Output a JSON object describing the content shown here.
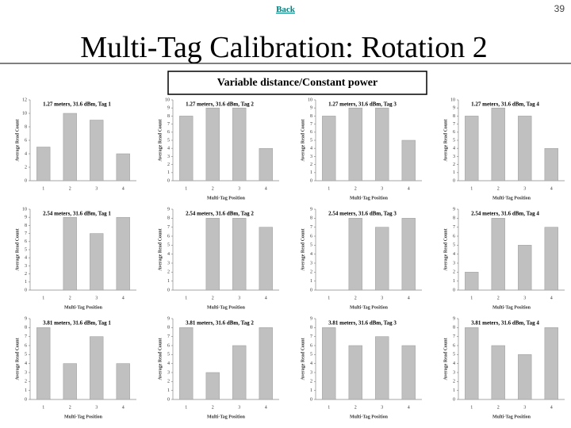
{
  "page": {
    "back": "Back",
    "number": "39",
    "title": "Multi-Tag Calibration: Rotation 2",
    "subtitle": "Variable distance/Constant power"
  },
  "chart_data": [
    {
      "type": "bar",
      "title": "1.27 meters, 31.6 dBm, Tag 1",
      "y_label": "Average Read Count",
      "categories": [
        "1",
        "2",
        "3",
        "4"
      ],
      "values": [
        5,
        10,
        9,
        4
      ],
      "color": "#c0c0c0",
      "ylim": [
        0,
        12
      ],
      "yticks": [
        0,
        2,
        4,
        6,
        8,
        10,
        12
      ]
    },
    {
      "type": "bar",
      "title": "1.27 meters, 31.6 dBm, Tag 2",
      "x_label": "Multi-Tag Position",
      "y_label": "Average Read Count",
      "categories": [
        "1",
        "2",
        "3",
        "4"
      ],
      "values": [
        8,
        9,
        9,
        4
      ],
      "color": "#c0c0c0",
      "ylim": [
        0,
        10
      ],
      "yticks": [
        0,
        1,
        2,
        3,
        4,
        5,
        6,
        7,
        8,
        9,
        10
      ]
    },
    {
      "type": "bar",
      "title": "1.27 meters, 31.6 dBm, Tag 3",
      "x_label": "Multi-Tag Position",
      "y_label": "Average Read Count",
      "categories": [
        "1",
        "2",
        "3",
        "4"
      ],
      "values": [
        8,
        9,
        9,
        5
      ],
      "color": "#c0c0c0",
      "ylim": [
        0,
        10
      ],
      "yticks": [
        0,
        1,
        2,
        3,
        4,
        5,
        6,
        7,
        8,
        9,
        10
      ]
    },
    {
      "type": "bar",
      "title": "1.27 meters, 31.6 dBm, Tag 4",
      "x_label": "Multi-Tag Position",
      "y_label": "Average Read Count",
      "categories": [
        "1",
        "2",
        "3",
        "4"
      ],
      "values": [
        8,
        9,
        8,
        4
      ],
      "color": "#c0c0c0",
      "ylim": [
        0,
        10
      ],
      "yticks": [
        0,
        1,
        2,
        3,
        4,
        5,
        6,
        7,
        8,
        9,
        10
      ]
    },
    {
      "type": "bar",
      "title": "2.54 meters, 31.6 dBm, Tag 1",
      "x_label": "Multi-Tag Position",
      "y_label": "Average Read Count",
      "categories": [
        "1",
        "2",
        "3",
        "4"
      ],
      "values": [
        0,
        9,
        7,
        9
      ],
      "color": "#c0c0c0",
      "ylim": [
        0,
        10
      ],
      "yticks": [
        0,
        1,
        2,
        3,
        4,
        5,
        6,
        7,
        8,
        9,
        10
      ]
    },
    {
      "type": "bar",
      "title": "2.54 meters, 31.6 dBm, Tag 2",
      "x_label": "Multi-Tag Position",
      "y_label": "Average Read Count",
      "categories": [
        "1",
        "2",
        "3",
        "4"
      ],
      "values": [
        0,
        8,
        8,
        7
      ],
      "color": "#c0c0c0",
      "ylim": [
        0,
        9
      ],
      "yticks": [
        0,
        1,
        2,
        3,
        4,
        5,
        6,
        7,
        8,
        9
      ]
    },
    {
      "type": "bar",
      "title": "2.54 meters, 31.6 dBm, Tag 3",
      "x_label": "Multi-Tag Position",
      "y_label": "Average Read Count",
      "categories": [
        "1",
        "2",
        "3",
        "4"
      ],
      "values": [
        0,
        8,
        7,
        8
      ],
      "color": "#c0c0c0",
      "ylim": [
        0,
        9
      ],
      "yticks": [
        0,
        1,
        2,
        3,
        4,
        5,
        6,
        7,
        8,
        9
      ]
    },
    {
      "type": "bar",
      "title": "2.54 meters, 31.6 dBm, Tag 4",
      "x_label": "Multi-Tag Position",
      "y_label": "Average Read Count",
      "categories": [
        "1",
        "2",
        "3",
        "4"
      ],
      "values": [
        2,
        8,
        5,
        7
      ],
      "color": "#c0c0c0",
      "ylim": [
        0,
        9
      ],
      "yticks": [
        0,
        1,
        2,
        3,
        4,
        5,
        6,
        7,
        8,
        9
      ]
    },
    {
      "type": "bar",
      "title": "3.81 meters, 31.6 dBm, Tag 1",
      "x_label": "Multi-Tag Position",
      "y_label": "Average Read Count",
      "categories": [
        "1",
        "2",
        "3",
        "4"
      ],
      "values": [
        8,
        4,
        7,
        4
      ],
      "color": "#c0c0c0",
      "ylim": [
        0,
        9
      ],
      "yticks": [
        0,
        1,
        2,
        3,
        4,
        5,
        6,
        7,
        8,
        9
      ]
    },
    {
      "type": "bar",
      "title": "3.81 meters, 31.6 dBm, Tag 2",
      "x_label": "Multi-Tag Position",
      "y_label": "Average Read Count",
      "categories": [
        "1",
        "2",
        "3",
        "4"
      ],
      "values": [
        8,
        3,
        6,
        8
      ],
      "color": "#c0c0c0",
      "ylim": [
        0,
        9
      ],
      "yticks": [
        0,
        1,
        2,
        3,
        4,
        5,
        6,
        7,
        8,
        9
      ]
    },
    {
      "type": "bar",
      "title": "3.81 meters, 31.6 dBm, Tag 3",
      "x_label": "Multi-Tag Position",
      "y_label": "Average Read Count",
      "categories": [
        "1",
        "2",
        "3",
        "4"
      ],
      "values": [
        8,
        6,
        7,
        6
      ],
      "color": "#c0c0c0",
      "ylim": [
        0,
        9
      ],
      "yticks": [
        0,
        1,
        2,
        3,
        4,
        5,
        6,
        7,
        8,
        9
      ]
    },
    {
      "type": "bar",
      "title": "3.81 meters, 31.6 dBm, Tag 4",
      "x_label": "Multi-Tag Position",
      "y_label": "Average Read Count",
      "categories": [
        "1",
        "2",
        "3",
        "4"
      ],
      "values": [
        8,
        6,
        5,
        8
      ],
      "color": "#c0c0c0",
      "ylim": [
        0,
        9
      ],
      "yticks": [
        0,
        1,
        2,
        3,
        4,
        5,
        6,
        7,
        8,
        9
      ]
    }
  ]
}
